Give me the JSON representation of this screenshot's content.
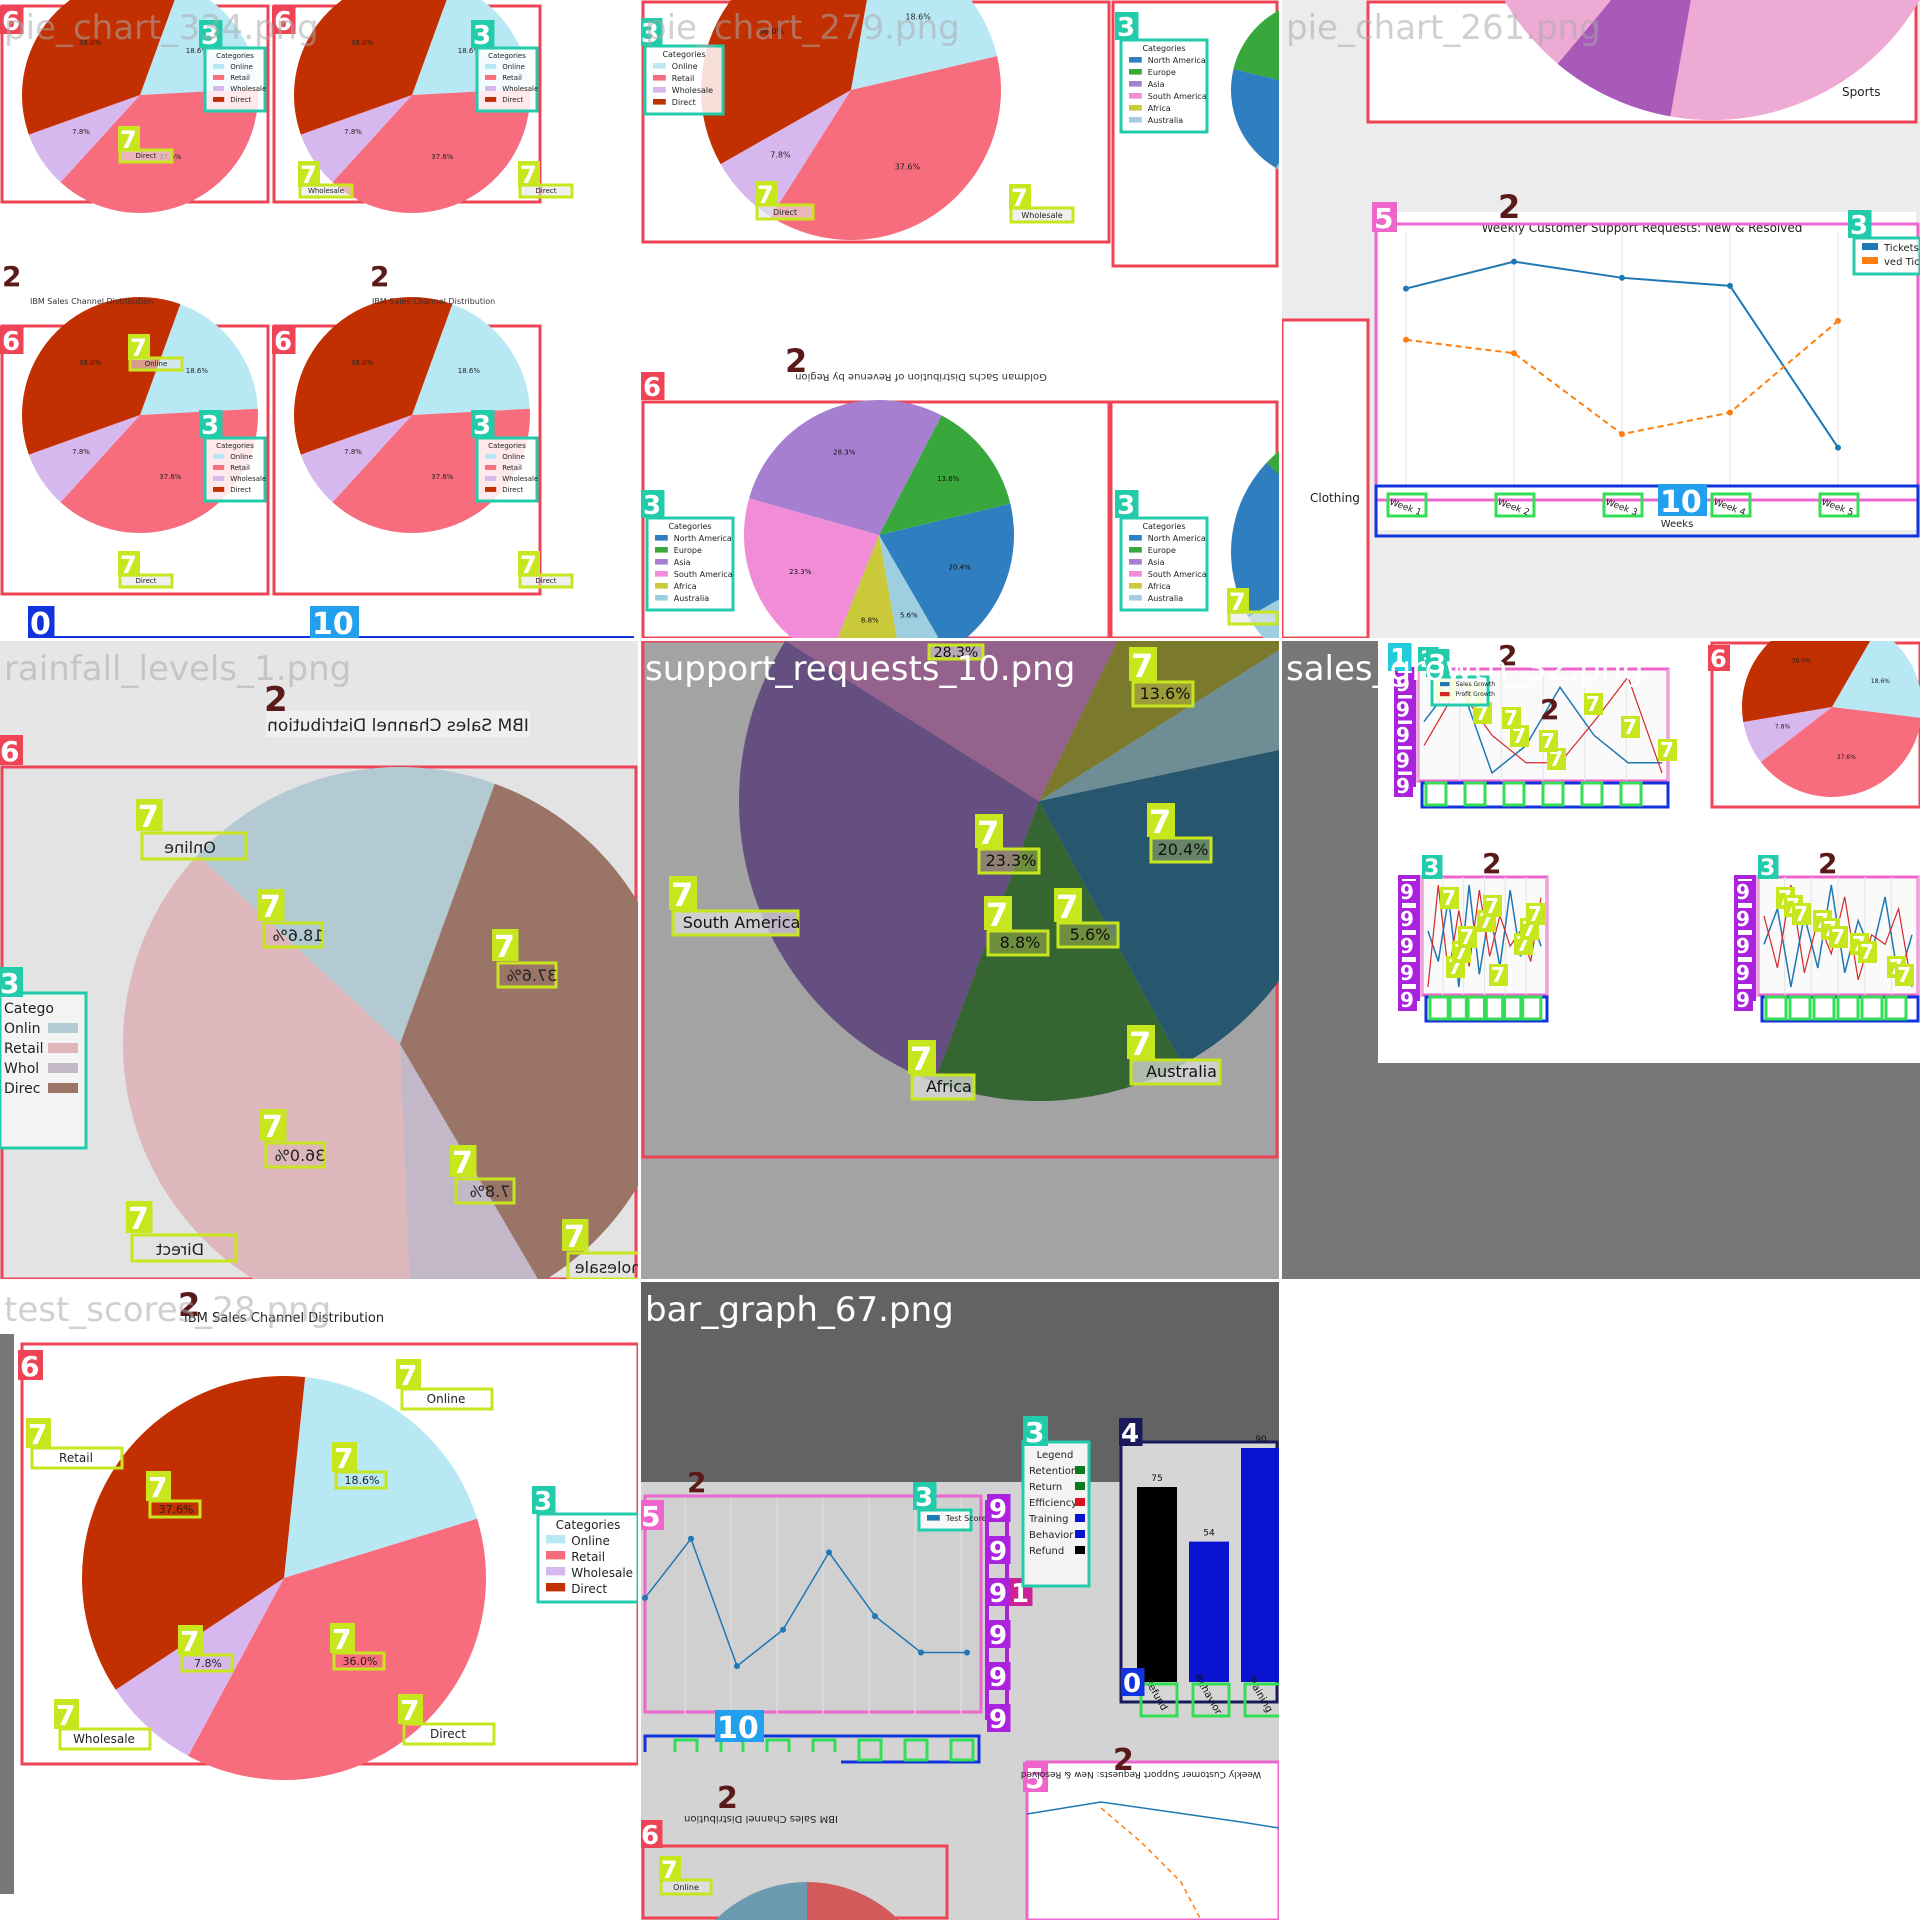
{
  "tiles": {
    "t1": {
      "filename": "pie_chart_334.png"
    },
    "t2": {
      "filename": "pie_chart_279.png"
    },
    "t3": {
      "filename": "pie_chart_261.png"
    },
    "t4": {
      "filename": "rainfall_levels_1.png"
    },
    "t5": {
      "filename": "support_requests_10.png"
    },
    "t6": {
      "filename": "sales_growth_32.png"
    },
    "t7": {
      "filename": "test_scores_28.png"
    },
    "t8": {
      "filename": "bar_graph_67.png"
    }
  },
  "annotation_ids": {
    "title": "2",
    "legend": "3",
    "axes": "5",
    "plot": "6",
    "label": "7",
    "tick": "8",
    "yaxis": "9",
    "xaxis": "10",
    "origin": "0",
    "ylabel": "1",
    "bar_area": "4"
  },
  "texts": {
    "channel_title": "IBM Sales Channel Distribution",
    "channel_title_mirrored": "IBM Sales Channel Distribution",
    "region_title": "Goldman Sachs Distribution of Revenue by Region",
    "support_title": "Weekly Customer Support Requests: New & Resolved",
    "weeks": "Weeks",
    "legend_header": "Categories",
    "legend_tickets": [
      "Tickets",
      "ved Tickets"
    ],
    "legend_sales": [
      "Sales Growth",
      "Profit Growth"
    ],
    "test_scores_legend": "Test Scores",
    "bar_legend_header": "Legend",
    "clothing": "Clothing",
    "sports": "Sports"
  },
  "chart_data": [
    {
      "type": "pie",
      "title": "IBM Sales Channel Distribution",
      "categories": [
        "Online",
        "Retail",
        "Wholesale",
        "Direct"
      ],
      "values": [
        18.6,
        37.6,
        7.8,
        36.0
      ],
      "value_labels": [
        "18.6%",
        "37.6%",
        "7.8%",
        "36.0%"
      ],
      "colors": [
        "#b9e8f5",
        "#f76d7e",
        "#d7b8ee",
        "#c22f00"
      ],
      "legend_title": "Categories",
      "legend_placement": "right"
    },
    {
      "type": "pie",
      "title": "Goldman Sachs Distribution of Revenue by Region",
      "categories": [
        "North America",
        "Europe",
        "Asia",
        "South America",
        "Africa",
        "Australia"
      ],
      "values": [
        20.4,
        13.6,
        28.3,
        23.3,
        8.8,
        5.6
      ],
      "value_labels": [
        "20.4%",
        "13.6%",
        "28.3%",
        "23.3%",
        "8.8%",
        "5.6%"
      ],
      "colors": [
        "#2f7fc0",
        "#39a83c",
        "#a77fd0",
        "#f08cd8",
        "#c9c93a",
        "#9dcfe0"
      ],
      "legend_title": "Categories",
      "legend_placement": "left"
    },
    {
      "type": "line",
      "title": "Weekly Customer Support Requests: New & Resolved",
      "xlabel": "Weeks",
      "categories": [
        "Week 1",
        "Week 2",
        "Week 3",
        "Week 4",
        "Week 5"
      ],
      "series": [
        {
          "name": "Tickets",
          "values": [
            94,
            104,
            98,
            95,
            35
          ]
        },
        {
          "name": "Resolved Tickets",
          "values": [
            75,
            70,
            40,
            48,
            82
          ]
        }
      ]
    },
    {
      "type": "line",
      "legend": [
        "Test Scores"
      ],
      "series": [
        {
          "name": "Test Scores",
          "values": [
            72,
            85,
            57,
            65,
            82,
            68,
            60,
            60
          ]
        }
      ]
    },
    {
      "type": "bar",
      "legend_title": "Legend",
      "categories": [
        "Refund",
        "Behavior",
        "Training"
      ],
      "values": [
        75,
        54,
        90
      ],
      "colors": [
        "#000000",
        "#0a14d0",
        "#0a14d0"
      ]
    }
  ]
}
